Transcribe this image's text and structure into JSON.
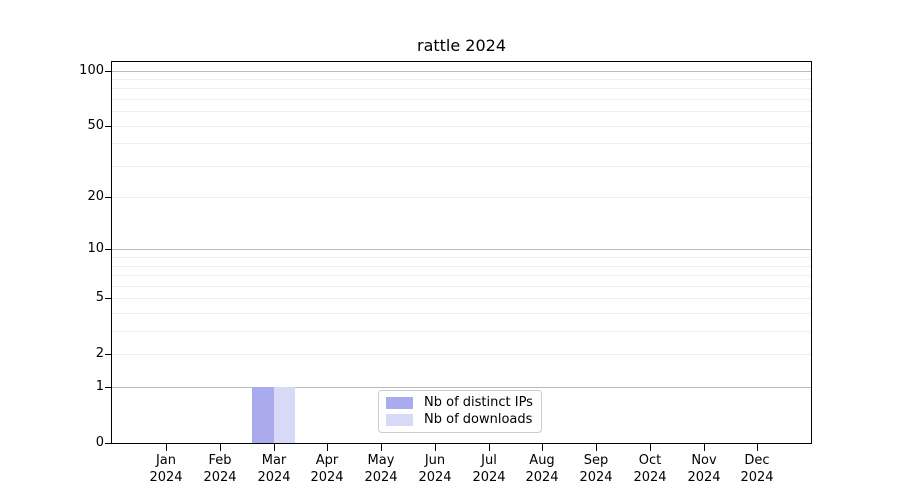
{
  "chart_data": {
    "type": "bar",
    "title": "rattle 2024",
    "xlabel": "",
    "ylabel": "",
    "categories": [
      "Jan 2024",
      "Feb 2024",
      "Mar 2024",
      "Apr 2024",
      "May 2024",
      "Jun 2024",
      "Jul 2024",
      "Aug 2024",
      "Sep 2024",
      "Oct 2024",
      "Nov 2024",
      "Dec 2024"
    ],
    "series": [
      {
        "name": "Nb of distinct IPs",
        "color": "#aaaaee",
        "values": [
          0,
          0,
          1,
          0,
          0,
          0,
          0,
          0,
          0,
          0,
          0,
          0
        ]
      },
      {
        "name": "Nb of downloads",
        "color": "#d8d8f7",
        "values": [
          0,
          0,
          1,
          0,
          0,
          0,
          0,
          0,
          0,
          0,
          0,
          0
        ]
      }
    ],
    "y_axis": {
      "scale": "log1p",
      "ticks": [
        0,
        1,
        2,
        5,
        10,
        20,
        50,
        100
      ],
      "major_gridlines": [
        1,
        10,
        100
      ],
      "minor_gridlines": [
        2,
        3,
        4,
        5,
        6,
        7,
        8,
        9,
        20,
        30,
        40,
        50,
        60,
        70,
        80,
        90
      ],
      "range": [
        0,
        112
      ]
    },
    "legend": {
      "position": "lower center",
      "entries": [
        "Nb of distinct IPs",
        "Nb of downloads"
      ]
    },
    "colors": {
      "axis": "#000000",
      "major_grid": "#bbbbbb",
      "minor_grid": "#eeeeee",
      "background": "#ffffff"
    }
  }
}
